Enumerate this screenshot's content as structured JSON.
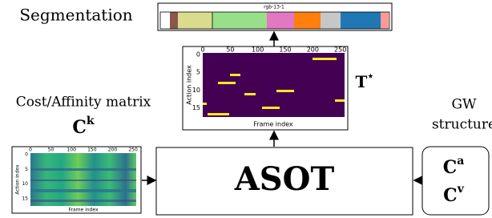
{
  "segmentation": {
    "title": "Segmentation",
    "label": "rgb-13-1"
  },
  "cost_matrix": {
    "title": "Cost/Affinity matrix",
    "symbol": "C",
    "superscript": "k",
    "xlabel": "Frame index",
    "ylabel": "Action index",
    "xticks": [
      0,
      50,
      100,
      150,
      200,
      250
    ],
    "yticks": [
      0,
      5,
      10,
      15
    ]
  },
  "transport": {
    "symbol": "T",
    "superscript": "⋆",
    "xlabel": "Frame index",
    "ylabel": "Action index",
    "xticks": [
      0,
      50,
      100,
      150,
      200,
      250
    ],
    "yticks": [
      0,
      5,
      10,
      15
    ]
  },
  "solver": {
    "label": "ASOT"
  },
  "gw_structure": {
    "title_lines": [
      "GW",
      "structure"
    ],
    "matrices": [
      {
        "symbol": "C",
        "superscript": "a"
      },
      {
        "symbol": "C",
        "superscript": "v"
      }
    ]
  }
}
